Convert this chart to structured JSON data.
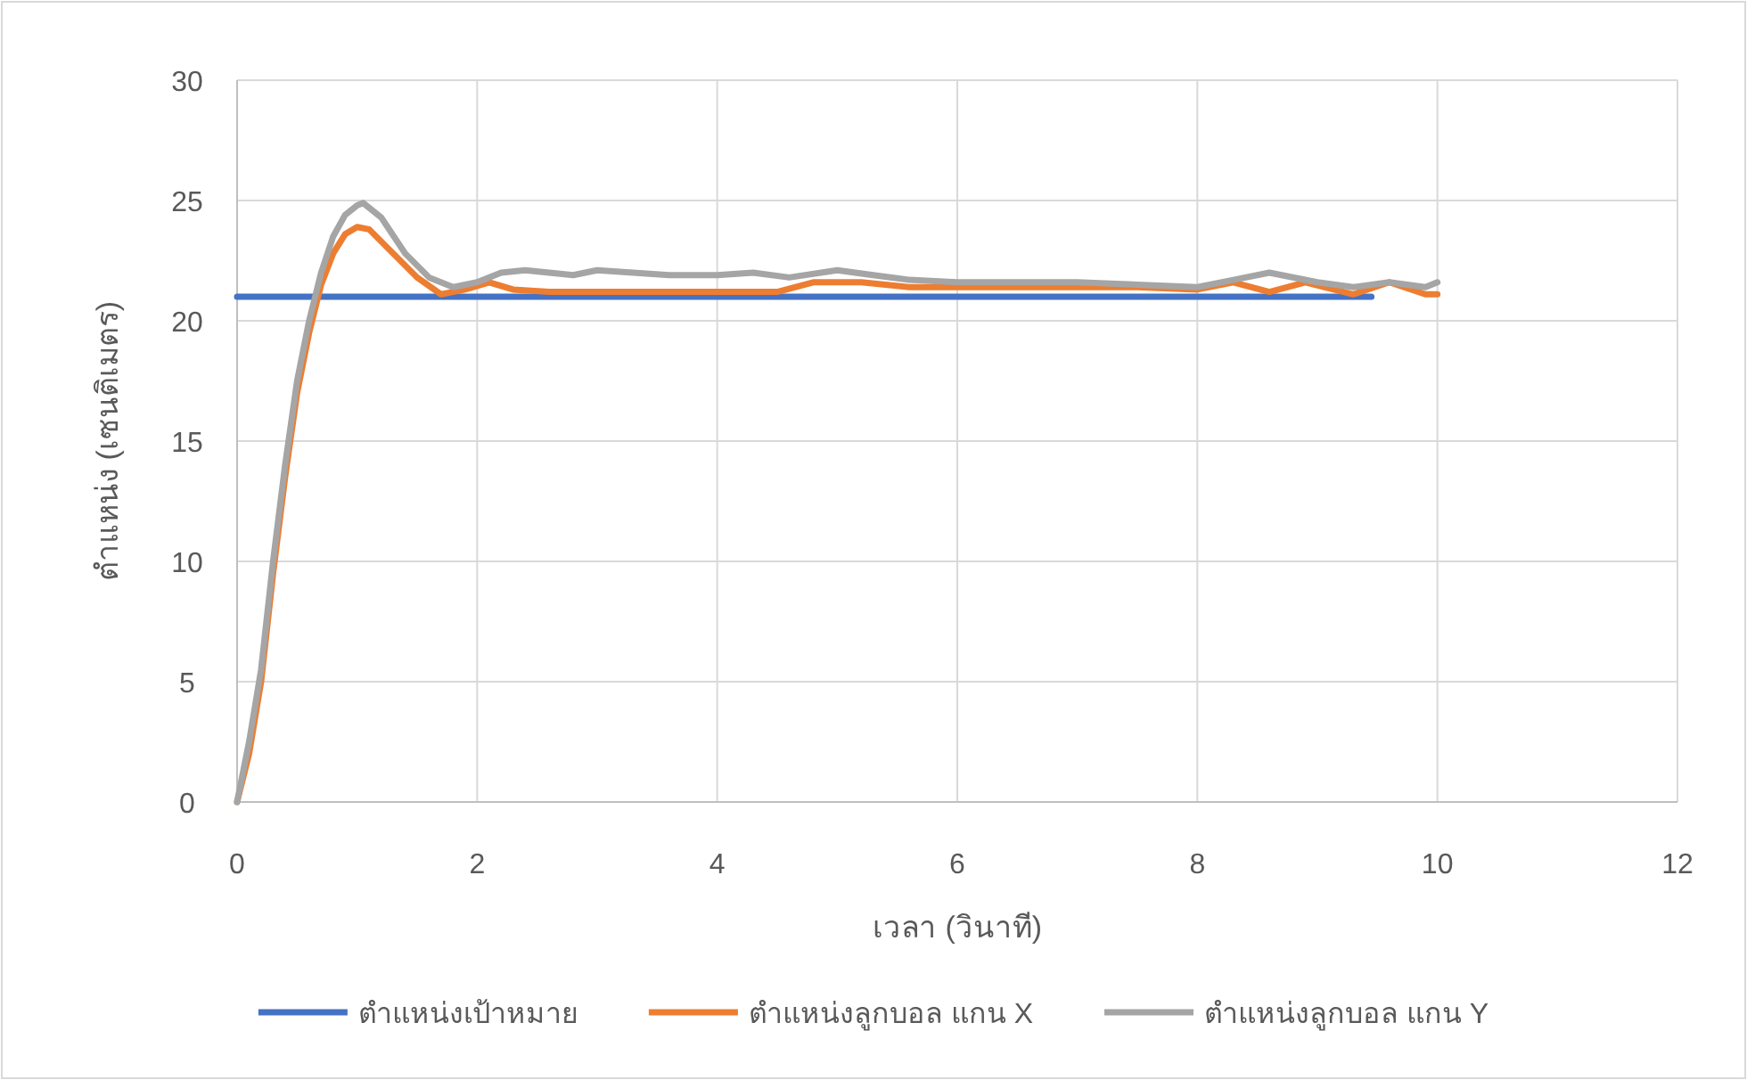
{
  "chart_data": {
    "type": "line",
    "xlabel": "เวลา (วินาที)",
    "ylabel": "ตำแหน่ง (เซนติเมตร)",
    "xlim": [
      0,
      12
    ],
    "xticks": [
      0,
      2,
      4,
      6,
      8,
      10,
      12
    ],
    "ylim": [
      0,
      30
    ],
    "yticks": [
      0,
      5,
      10,
      15,
      20,
      25,
      30
    ],
    "grid": true,
    "legend": "bottom",
    "marker": "none",
    "line_style": "solid",
    "series": [
      {
        "name": "ตำแหน่งเป้าหมาย",
        "color": "#4472c4",
        "x": [
          0,
          9.45
        ],
        "values": [
          21,
          21
        ]
      },
      {
        "name": "ตำแหน่งลูกบอล แกน X",
        "color": "#ed7d31",
        "x": [
          0,
          0.1,
          0.2,
          0.3,
          0.4,
          0.5,
          0.6,
          0.7,
          0.8,
          0.9,
          1.0,
          1.1,
          1.3,
          1.5,
          1.7,
          1.9,
          2.1,
          2.3,
          2.6,
          3.0,
          3.5,
          4.0,
          4.5,
          4.8,
          5.2,
          5.6,
          6.0,
          7.0,
          7.5,
          8.0,
          8.3,
          8.6,
          8.9,
          9.3,
          9.6,
          9.9,
          10.0
        ],
        "values": [
          0,
          2,
          5,
          9.5,
          13.5,
          17,
          19.5,
          21.5,
          22.8,
          23.6,
          23.9,
          23.8,
          22.8,
          21.8,
          21.1,
          21.3,
          21.6,
          21.3,
          21.2,
          21.2,
          21.2,
          21.2,
          21.2,
          21.6,
          21.6,
          21.4,
          21.4,
          21.4,
          21.4,
          21.3,
          21.6,
          21.2,
          21.6,
          21.1,
          21.6,
          21.1,
          21.1
        ]
      },
      {
        "name": "ตำแหน่งลูกบอล แกน Y",
        "color": "#a5a5a5",
        "x": [
          0,
          0.1,
          0.2,
          0.3,
          0.4,
          0.5,
          0.6,
          0.7,
          0.8,
          0.9,
          1.0,
          1.05,
          1.2,
          1.4,
          1.6,
          1.8,
          2.0,
          2.2,
          2.4,
          2.6,
          2.8,
          3.0,
          3.3,
          3.6,
          4.0,
          4.3,
          4.6,
          5.0,
          5.3,
          5.6,
          6.0,
          6.5,
          7.0,
          7.5,
          8.0,
          8.3,
          8.6,
          9.0,
          9.3,
          9.6,
          9.9,
          10.0
        ],
        "values": [
          0,
          2.5,
          5.5,
          10,
          14,
          17.5,
          20,
          22,
          23.5,
          24.4,
          24.8,
          24.9,
          24.3,
          22.8,
          21.8,
          21.4,
          21.6,
          22.0,
          22.1,
          22.0,
          21.9,
          22.1,
          22.0,
          21.9,
          21.9,
          22.0,
          21.8,
          22.1,
          21.9,
          21.7,
          21.6,
          21.6,
          21.6,
          21.5,
          21.4,
          21.7,
          22.0,
          21.6,
          21.4,
          21.6,
          21.4,
          21.6
        ]
      }
    ]
  }
}
